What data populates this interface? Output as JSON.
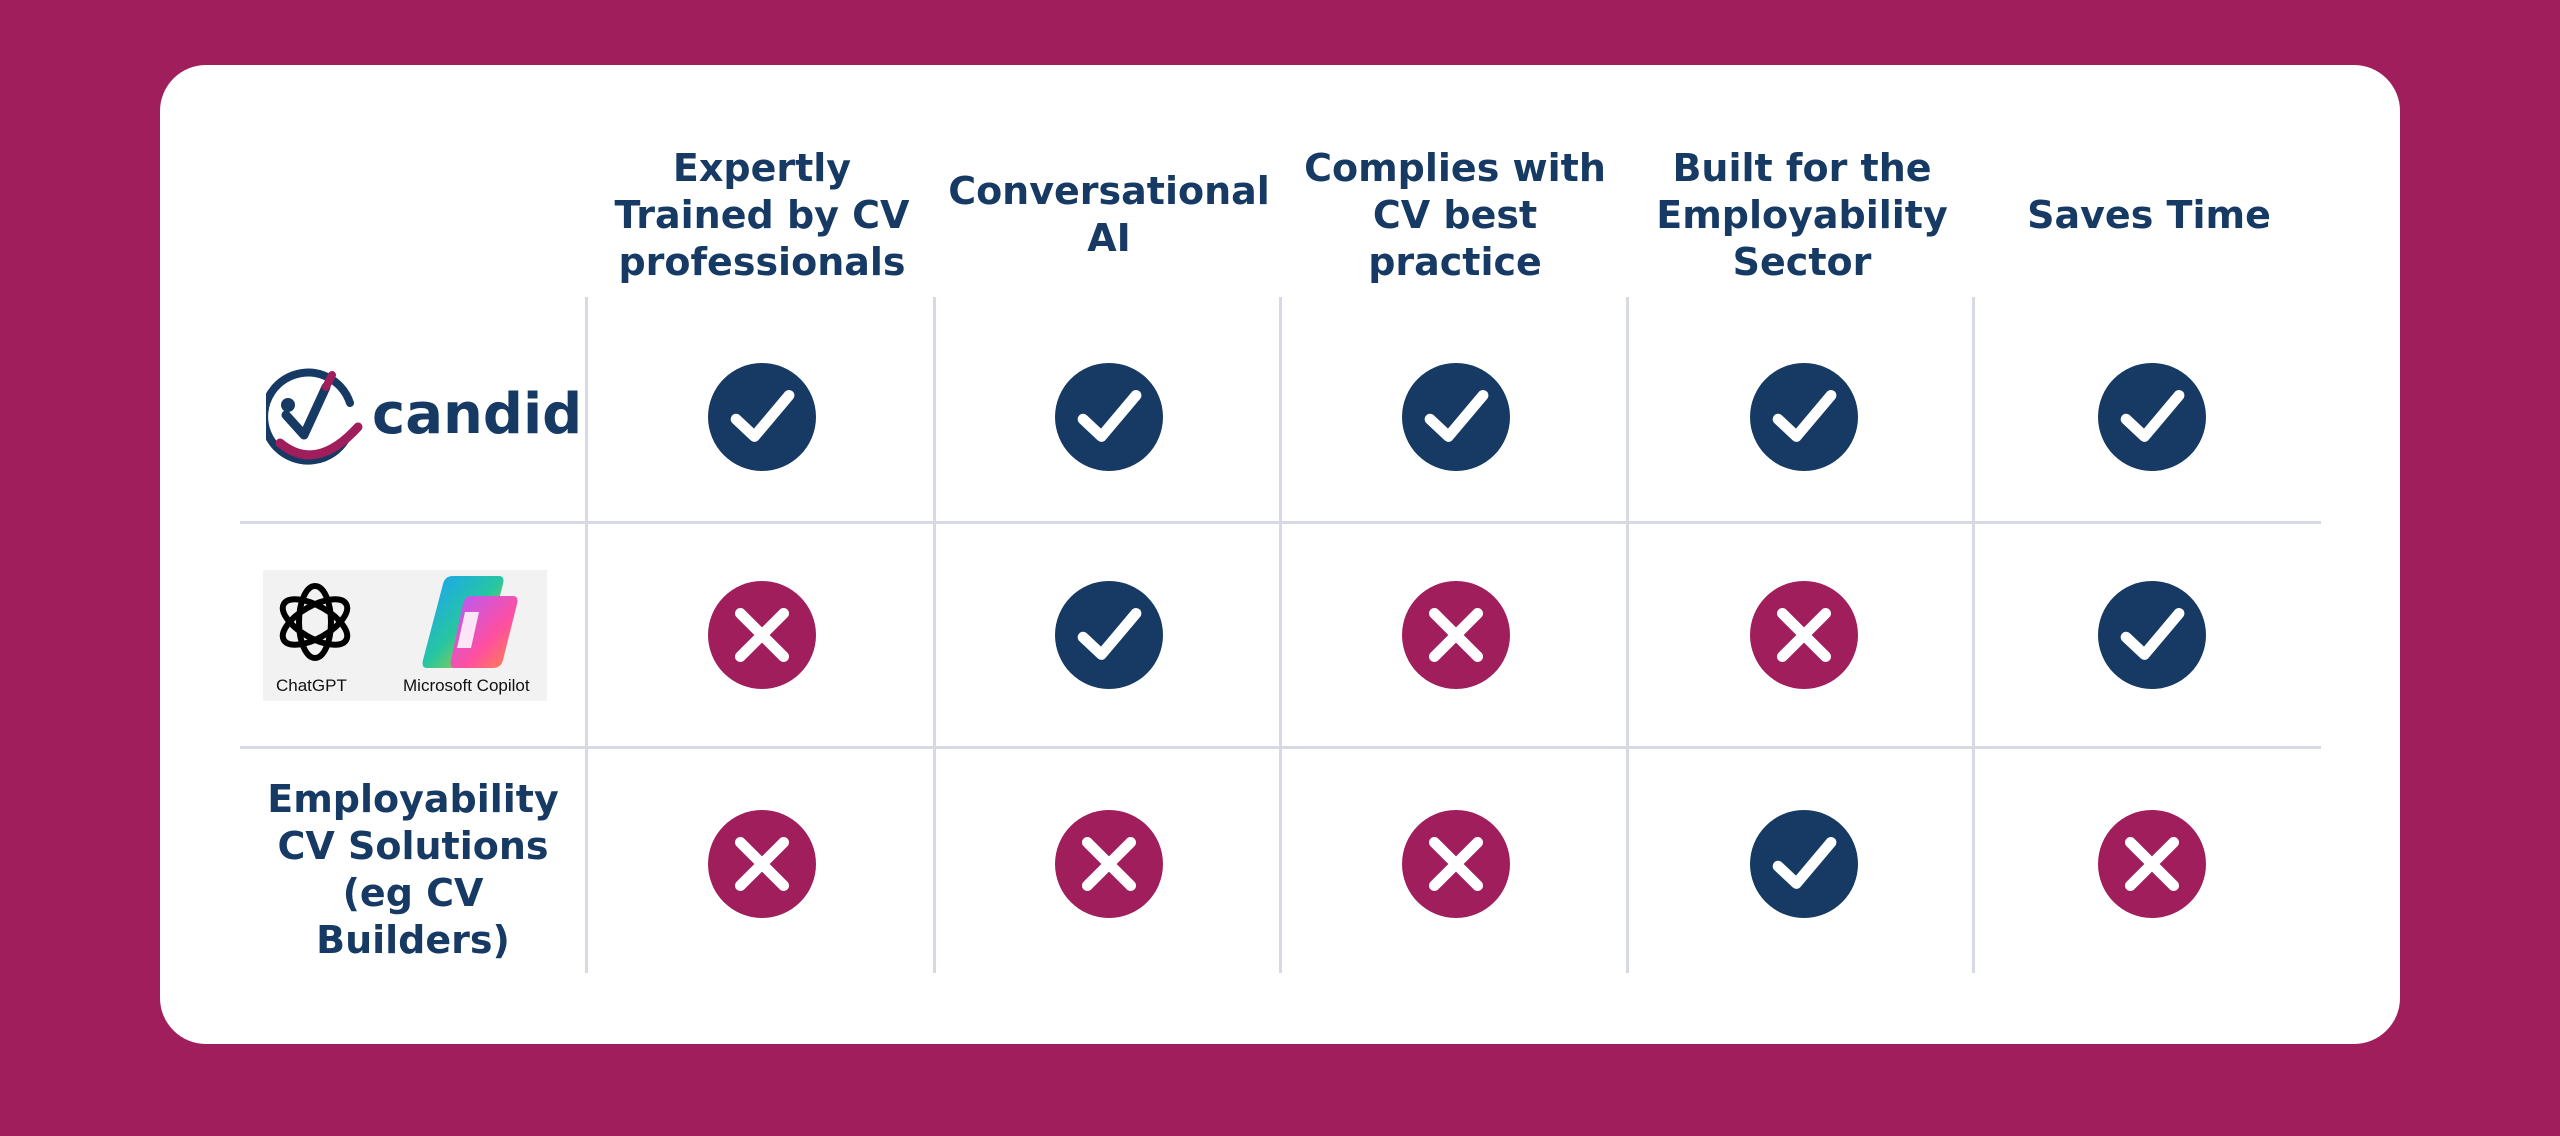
{
  "columns": [
    {
      "label": "Expertly Trained by CV professionals"
    },
    {
      "label": "Conversational AI"
    },
    {
      "label": "Complies with CV best practice"
    },
    {
      "label": "Built for the Employability Sector"
    },
    {
      "label": "Saves Time"
    }
  ],
  "rows": [
    {
      "name": "candid",
      "logo": {
        "type": "candid-logo",
        "wordmark": "candid"
      },
      "marks": [
        "check",
        "check",
        "check",
        "check",
        "check"
      ]
    },
    {
      "name": "chatgpt-copilot",
      "logo": {
        "type": "chatgpt-copilot-logos",
        "chatgpt_label": "ChatGPT",
        "copilot_label": "Microsoft Copilot"
      },
      "marks": [
        "cross",
        "check",
        "cross",
        "cross",
        "check"
      ]
    },
    {
      "name": "employability-cv-solutions",
      "label": "Employability CV Solutions (eg CV Builders)",
      "marks": [
        "cross",
        "cross",
        "cross",
        "check",
        "cross"
      ]
    }
  ],
  "colors": {
    "background": "#a01e5b",
    "card": "#ffffff",
    "check": "#163a63",
    "cross": "#a01e5b",
    "text": "#163a63",
    "grid": "#d7dae4"
  },
  "icons": {
    "check": "check-circle-icon",
    "cross": "cross-circle-icon"
  }
}
